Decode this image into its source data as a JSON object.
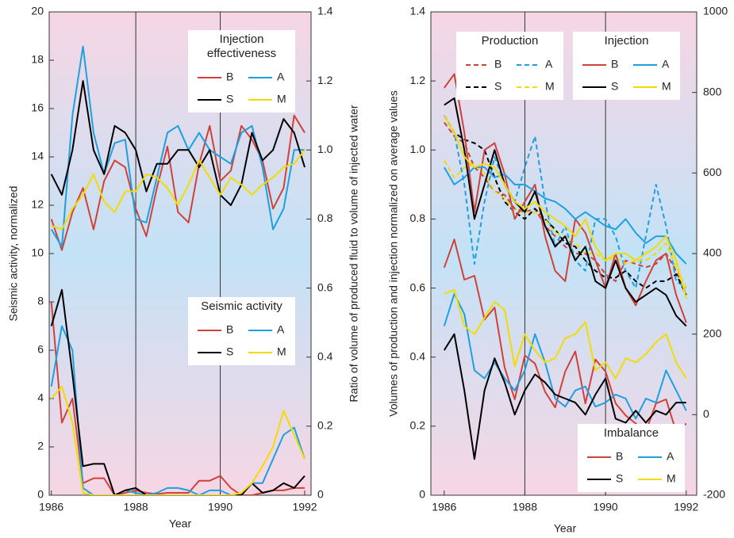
{
  "chart_data": [
    {
      "type": "line",
      "xlabel": "Year",
      "ylabel": "Seismic activity, normalized",
      "y2label": "Ratio of volume of produced fluid to volume of injected water",
      "x": [
        1986,
        1986.25,
        1986.5,
        1986.75,
        1987,
        1987.25,
        1987.5,
        1987.75,
        1988,
        1988.25,
        1988.5,
        1988.75,
        1989,
        1989.25,
        1989.5,
        1989.75,
        1990,
        1990.25,
        1990.5,
        1990.75,
        1991,
        1991.25,
        1991.5,
        1991.75,
        1992
      ],
      "xlim": [
        1985.95,
        1992.15
      ],
      "xticks": [
        1986,
        1988,
        1990,
        1992
      ],
      "vlines": [
        1988,
        1990
      ],
      "ylim": [
        0,
        20
      ],
      "yticks": [
        0,
        2,
        4,
        6,
        8,
        10,
        12,
        14,
        16,
        18,
        20
      ],
      "y2lim": [
        0,
        1.4
      ],
      "y2ticks": [
        0,
        0.2,
        0.4,
        0.6,
        0.8,
        {
          "value": 1,
          "label": "1.0"
        },
        1.2,
        1.4
      ],
      "groups": [
        {
          "title": "Injection effectiveness",
          "axis": "y2",
          "dash": false,
          "series": [
            {
              "name": "B",
              "color": "#d0413a",
              "values": [
                0.8,
                0.71,
                0.82,
                0.89,
                0.77,
                0.91,
                0.97,
                0.95,
                0.83,
                0.75,
                0.89,
                1.01,
                0.82,
                0.79,
                0.96,
                1.07,
                0.91,
                0.94,
                1.07,
                1.03,
                0.97,
                0.83,
                0.89,
                1.1,
                1.05
              ]
            },
            {
              "name": "A",
              "color": "#1ea0e0",
              "values": [
                0.77,
                0.72,
                1.1,
                1.3,
                1.05,
                0.93,
                1.02,
                1.03,
                0.8,
                0.79,
                0.92,
                1.05,
                1.07,
                1.0,
                1.05,
                1.0,
                0.98,
                0.96,
                1.05,
                1.07,
                0.95,
                0.77,
                0.83,
                1.0,
                1.0
              ]
            },
            {
              "name": "S",
              "color": "#000000",
              "values": [
                0.93,
                0.87,
                1.0,
                1.2,
                1.0,
                0.93,
                1.07,
                1.05,
                1.0,
                0.88,
                0.96,
                0.96,
                1.0,
                1.0,
                0.95,
                1.0,
                0.87,
                0.84,
                0.9,
                1.05,
                0.97,
                1.0,
                1.09,
                1.05,
                0.95
              ]
            },
            {
              "name": "M",
              "color": "#f2dc00",
              "values": [
                0.78,
                0.77,
                0.83,
                0.87,
                0.93,
                0.85,
                0.82,
                0.88,
                0.88,
                0.93,
                0.92,
                0.89,
                0.84,
                0.9,
                0.97,
                0.92,
                0.87,
                0.92,
                0.9,
                0.87,
                0.9,
                0.92,
                0.95,
                0.96,
                1.0
              ]
            }
          ]
        },
        {
          "title": "Seismic activity",
          "axis": "y",
          "dash": false,
          "series": [
            {
              "name": "B",
              "color": "#d0413a",
              "values": [
                8,
                3,
                4,
                0.5,
                0.7,
                0.7,
                0,
                0.1,
                0.2,
                0.1,
                0.05,
                0.1,
                0.1,
                0.1,
                0.6,
                0.6,
                0.8,
                0.3,
                0,
                0,
                0.1,
                0.2,
                0.2,
                0.3,
                0.3
              ]
            },
            {
              "name": "A",
              "color": "#1ea0e0",
              "values": [
                4.5,
                7,
                6,
                0.3,
                0,
                0,
                0,
                0.2,
                0.1,
                0,
                0.1,
                0.3,
                0.3,
                0.2,
                0,
                0.2,
                0.2,
                0,
                0,
                0.5,
                0.5,
                1.5,
                2.5,
                2.8,
                1.5
              ]
            },
            {
              "name": "S",
              "color": "#000000",
              "values": [
                7,
                8.5,
                5,
                1.2,
                1.3,
                1.3,
                0,
                0.2,
                0.3,
                0,
                0,
                0,
                0,
                0,
                0,
                0,
                0,
                0,
                0,
                0.5,
                0.1,
                0.2,
                0.5,
                0.3,
                0.8
              ]
            },
            {
              "name": "M",
              "color": "#f2dc00",
              "values": [
                4,
                4.5,
                3,
                0.1,
                0,
                0,
                0,
                0,
                0,
                0,
                0,
                0,
                0,
                0,
                0,
                0,
                0,
                0,
                0.1,
                0.5,
                1.2,
                2,
                3.5,
                2.5,
                1.5
              ]
            }
          ]
        }
      ]
    },
    {
      "type": "line",
      "xlabel": "Year",
      "ylabel": "Volumes of production and injection normalized on average values",
      "x": [
        1986,
        1986.25,
        1986.5,
        1986.75,
        1987,
        1987.25,
        1987.5,
        1987.75,
        1988,
        1988.25,
        1988.5,
        1988.75,
        1989,
        1989.25,
        1989.5,
        1989.75,
        1990,
        1990.25,
        1990.5,
        1990.75,
        1991,
        1991.25,
        1991.5,
        1991.75,
        1992
      ],
      "xlim": [
        1985.67,
        1992.26
      ],
      "xticks": [
        1986,
        1988,
        1990,
        1992
      ],
      "vlines": [
        1988,
        1990
      ],
      "ylim": [
        0,
        1.4
      ],
      "yticks": [
        0,
        0.2,
        0.4,
        0.6,
        0.8,
        {
          "value": 1,
          "label": "1.0"
        },
        1.2,
        1.4
      ],
      "y2lim": [
        -200,
        1000
      ],
      "y2ticks": [
        -200,
        0,
        200,
        400,
        600,
        800,
        1000
      ],
      "groups": [
        {
          "title": "Production",
          "axis": "y",
          "dash": true,
          "series": [
            {
              "name": "B",
              "color": "#d0413a",
              "values": [
                1.08,
                1.04,
                1.02,
                0.95,
                0.92,
                0.88,
                0.87,
                0.83,
                0.82,
                0.83,
                0.78,
                0.75,
                0.72,
                0.7,
                0.7,
                0.68,
                0.64,
                0.62,
                0.68,
                0.67,
                0.66,
                0.67,
                0.7,
                0.65,
                0.58
              ]
            },
            {
              "name": "A",
              "color": "#1ea0e0",
              "values": [
                1.1,
                1.05,
                0.9,
                0.67,
                0.85,
                0.98,
                0.9,
                0.85,
                0.95,
                1.04,
                0.85,
                0.72,
                0.78,
                0.68,
                0.65,
                0.8,
                0.8,
                0.75,
                0.65,
                0.6,
                0.75,
                0.9,
                0.78,
                0.62,
                0.6
              ]
            },
            {
              "name": "S",
              "color": "#000000",
              "values": [
                1.1,
                1.05,
                1.03,
                1.02,
                1.0,
                0.92,
                0.85,
                0.82,
                0.8,
                0.83,
                0.8,
                0.77,
                0.73,
                0.72,
                0.68,
                0.65,
                0.63,
                0.63,
                0.65,
                0.62,
                0.6,
                0.62,
                0.62,
                0.64,
                0.58
              ]
            },
            {
              "name": "M",
              "color": "#f2dc00",
              "values": [
                0.97,
                0.92,
                0.95,
                0.96,
                0.93,
                0.88,
                0.86,
                0.82,
                0.82,
                0.82,
                0.8,
                0.76,
                0.75,
                0.73,
                0.7,
                0.7,
                0.68,
                0.69,
                0.67,
                0.68,
                0.68,
                0.7,
                0.73,
                0.66,
                0.6
              ]
            }
          ]
        },
        {
          "title": "Injection",
          "axis": "y",
          "dash": false,
          "series": [
            {
              "name": "B",
              "color": "#d0413a",
              "values": [
                1.18,
                1.22,
                1.05,
                0.82,
                1.0,
                1.02,
                0.93,
                0.8,
                0.85,
                0.9,
                0.75,
                0.65,
                0.62,
                0.8,
                0.76,
                0.68,
                0.6,
                0.7,
                0.6,
                0.55,
                0.62,
                0.68,
                0.7,
                0.58,
                0.5
              ]
            },
            {
              "name": "A",
              "color": "#1ea0e0",
              "values": [
                0.95,
                0.9,
                0.92,
                0.95,
                0.95,
                0.92,
                0.93,
                0.9,
                0.9,
                0.88,
                0.86,
                0.85,
                0.83,
                0.8,
                0.82,
                0.8,
                0.78,
                0.77,
                0.8,
                0.76,
                0.73,
                0.75,
                0.75,
                0.7,
                0.67
              ]
            },
            {
              "name": "S",
              "color": "#000000",
              "values": [
                1.13,
                1.15,
                1.0,
                0.8,
                0.9,
                1.0,
                0.9,
                0.85,
                0.82,
                0.88,
                0.78,
                0.72,
                0.75,
                0.68,
                0.72,
                0.62,
                0.6,
                0.68,
                0.6,
                0.56,
                0.58,
                0.6,
                0.58,
                0.52,
                0.49
              ]
            },
            {
              "name": "M",
              "color": "#f2dc00",
              "values": [
                1.1,
                1.05,
                0.98,
                0.95,
                0.96,
                0.95,
                0.9,
                0.85,
                0.83,
                0.85,
                0.82,
                0.8,
                0.78,
                0.75,
                0.8,
                0.72,
                0.68,
                0.7,
                0.7,
                0.68,
                0.7,
                0.72,
                0.75,
                0.68,
                0.57
              ]
            }
          ]
        },
        {
          "title": "Imbalance",
          "axis": "y2",
          "dash": false,
          "series": [
            {
              "name": "B",
              "color": "#d0413a",
              "values": [
                365,
                435,
                335,
                345,
                236,
                266,
                117,
                38,
                147,
                127,
                57,
                18,
                107,
                157,
                28,
                137,
                107,
                28,
                -2,
                -22,
                -42,
                28,
                38,
                -42,
                -22
              ]
            },
            {
              "name": "A",
              "color": "#1ea0e0",
              "values": [
                220,
                300,
                250,
                110,
                90,
                130,
                90,
                60,
                110,
                200,
                130,
                40,
                20,
                60,
                70,
                20,
                30,
                50,
                40,
                -10,
                40,
                30,
                110,
                60,
                10
              ]
            },
            {
              "name": "S",
              "color": "#000000",
              "values": [
                160,
                200,
                60,
                -110,
                60,
                140,
                80,
                0,
                60,
                100,
                80,
                50,
                40,
                30,
                0,
                50,
                90,
                -10,
                -20,
                10,
                -20,
                10,
                0,
                30,
                30
              ]
            },
            {
              "name": "M",
              "color": "#f2dc00",
              "values": [
                300,
                310,
                220,
                200,
                240,
                280,
                260,
                120,
                200,
                160,
                130,
                140,
                190,
                200,
                230,
                110,
                130,
                90,
                140,
                130,
                150,
                180,
                200,
                130,
                90
              ]
            }
          ]
        }
      ]
    }
  ]
}
